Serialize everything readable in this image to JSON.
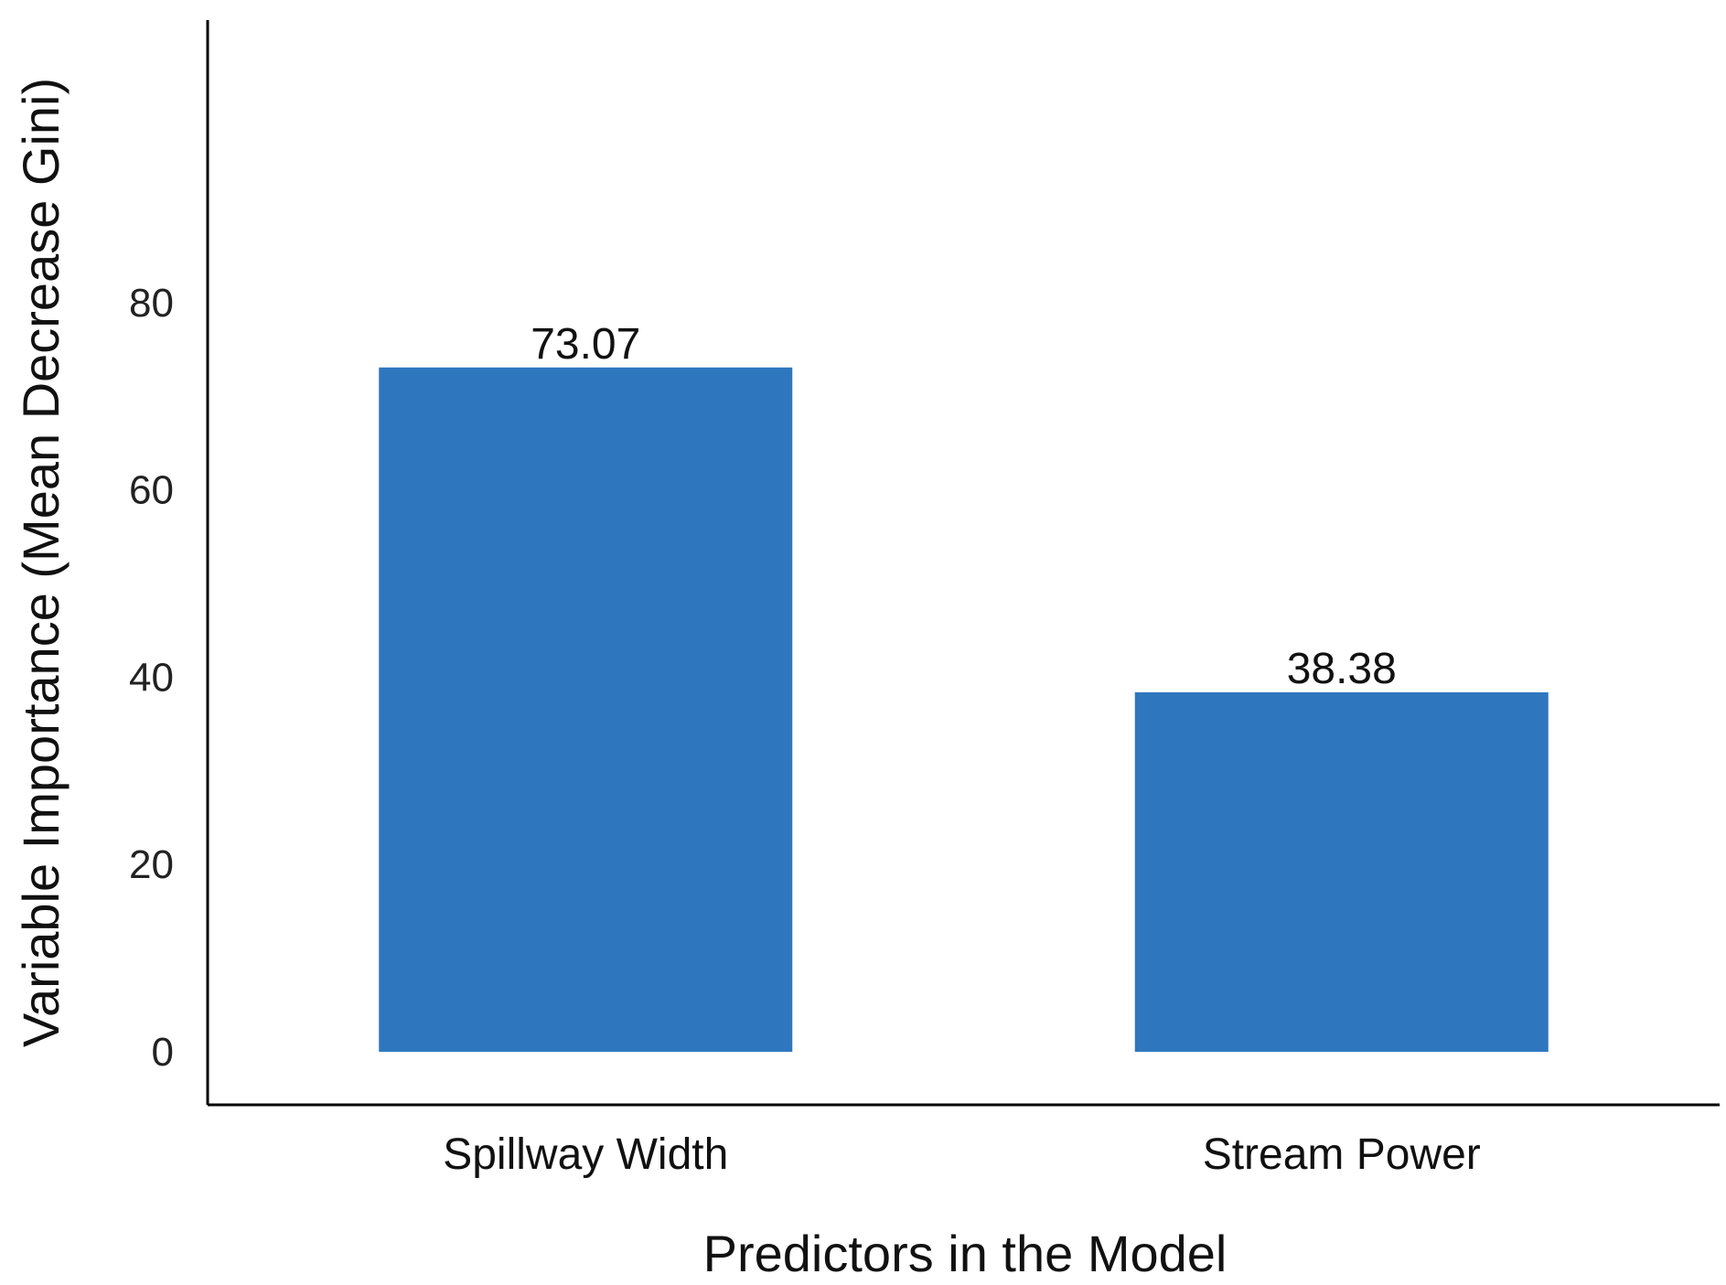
{
  "chart_data": {
    "type": "bar",
    "categories": [
      "Spillway Width",
      "Stream Power"
    ],
    "values": [
      73.07,
      38.38
    ],
    "value_labels": [
      "73.07",
      "38.38"
    ],
    "title": "",
    "xlabel": "Predictors in the Model",
    "ylabel": "Variable Importance (Mean Decrease Gini)",
    "ylim": [
      -4.5,
      88
    ],
    "yticks": [
      0,
      20,
      40,
      60,
      80
    ],
    "grid": false,
    "legend": "none",
    "bar_color": "#2e77bf"
  }
}
